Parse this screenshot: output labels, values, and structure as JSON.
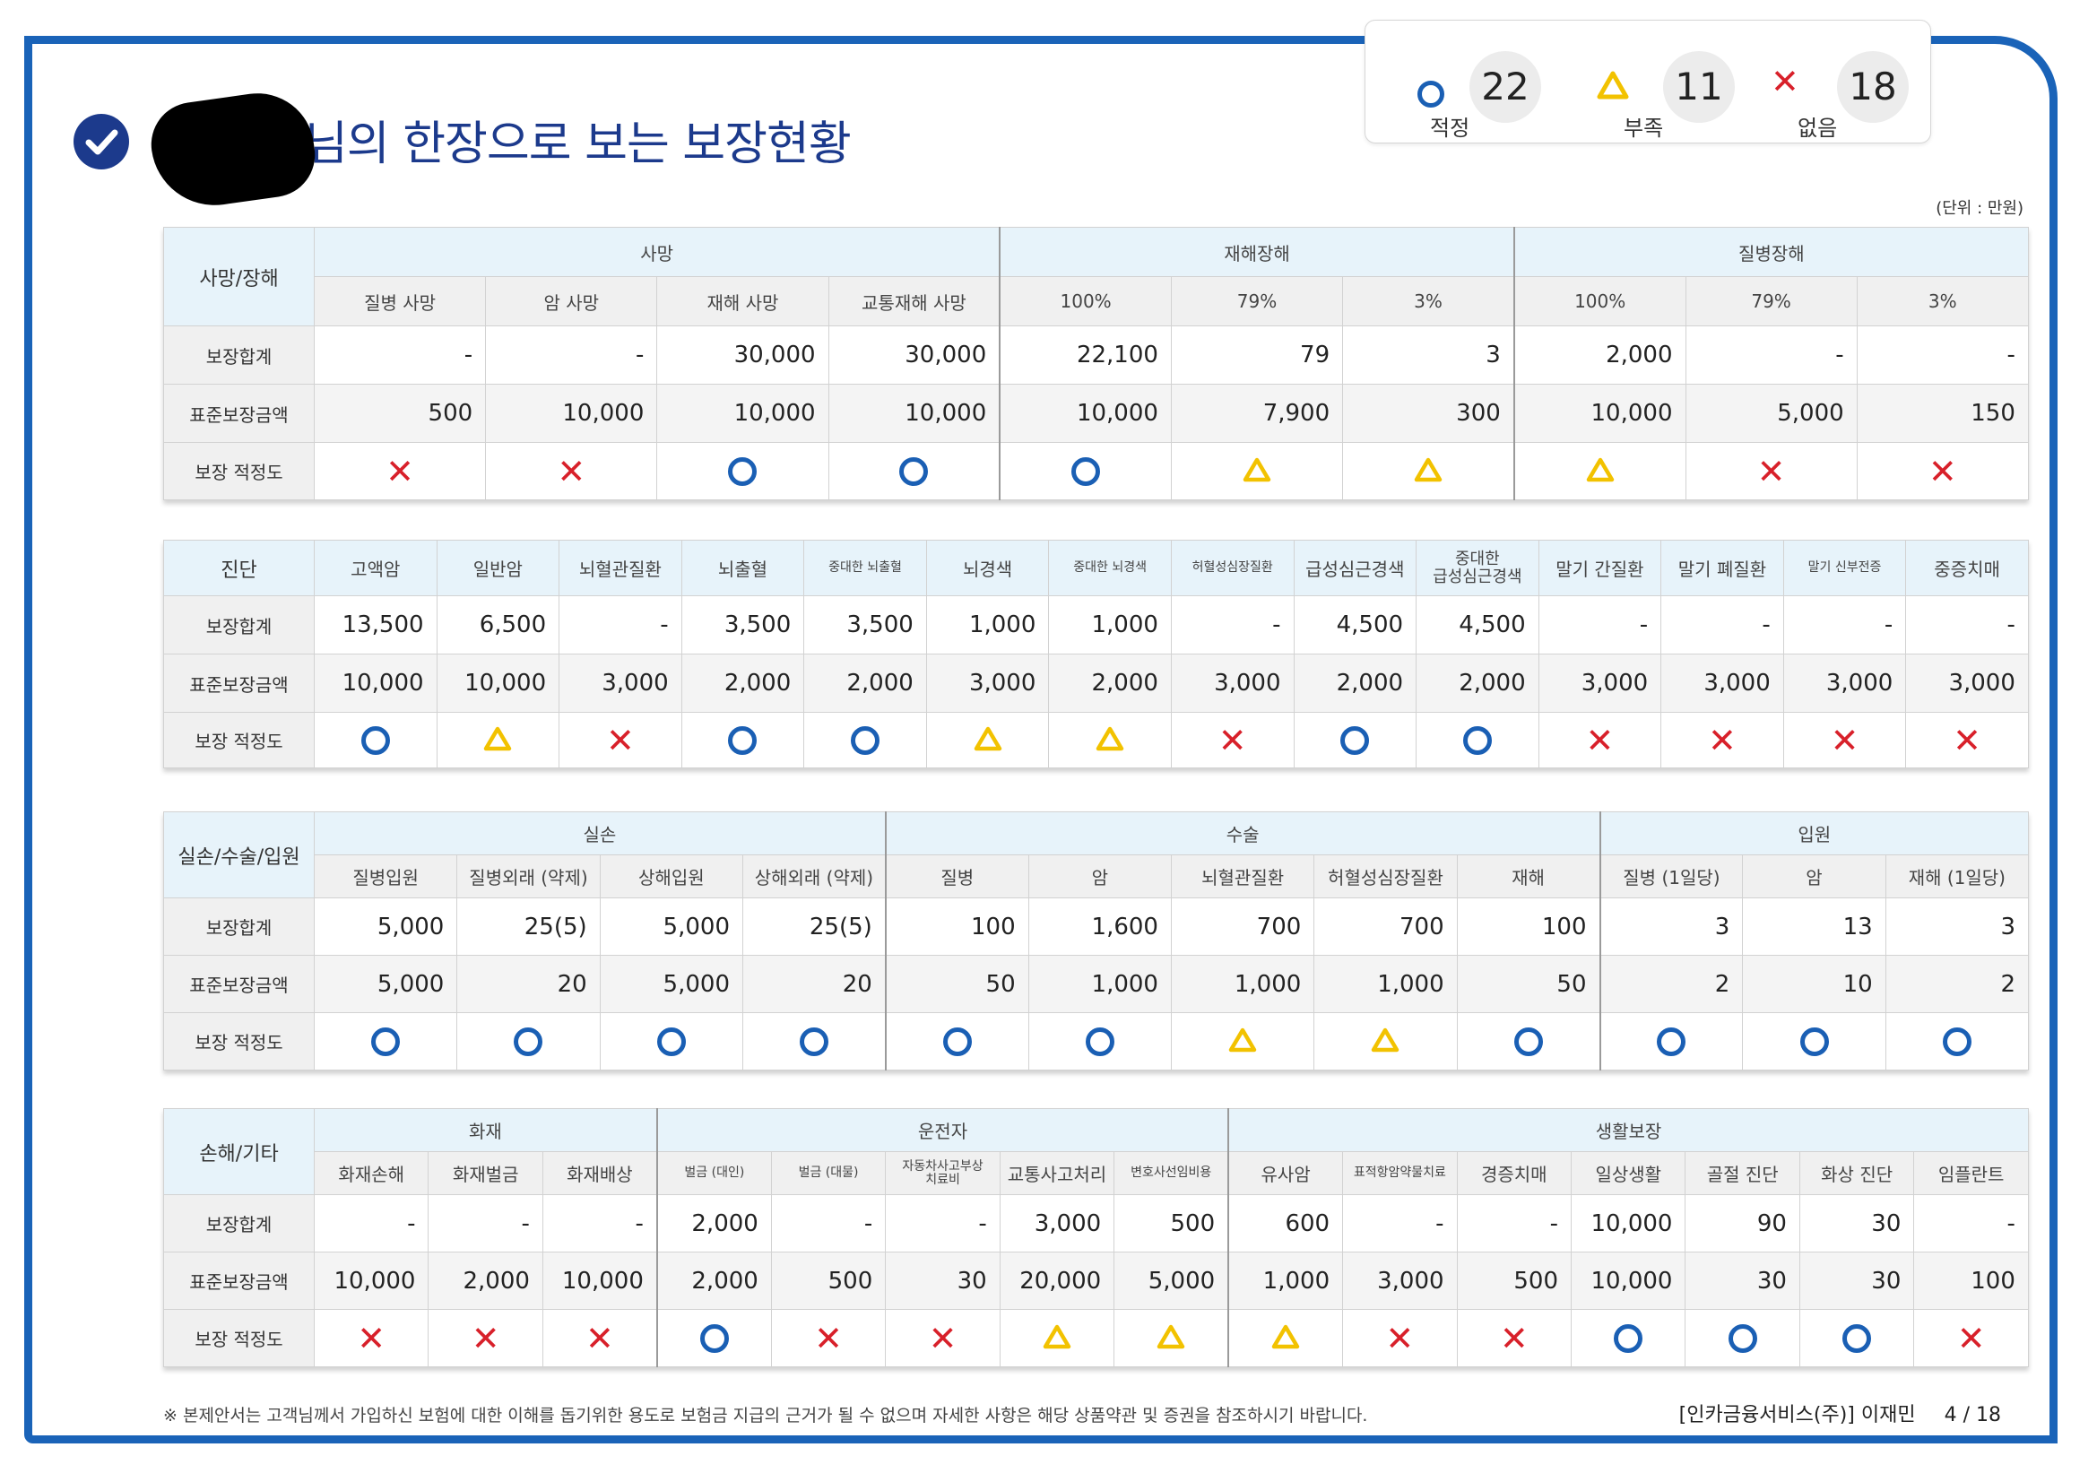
{
  "title": "님의 한장으로 보는 보장현황",
  "unit_label": "(단위 : 만원)",
  "legend": [
    {
      "symbol": "O",
      "count": "22",
      "label": "적정"
    },
    {
      "symbol": "triangle",
      "count": "11",
      "label": "부족"
    },
    {
      "symbol": "X",
      "count": "18",
      "label": "없음"
    }
  ],
  "colors": {
    "frame": "#1a63b8",
    "header": "#e7f3fa",
    "circle": "#1a5fb4",
    "triangle": "#f2c200",
    "cross": "#d8202a"
  },
  "row_labels": {
    "sum": "보장합계",
    "std": "표준보장금액",
    "adq": "보장 적정도"
  },
  "sections": [
    {
      "category": "사망/장해",
      "groups": [
        {
          "name": "사망",
          "span": 4
        },
        {
          "name": "재해장해",
          "span": 3
        },
        {
          "name": "질병장해",
          "span": 3
        }
      ],
      "items": [
        {
          "label": "질병 사망",
          "sum": "-",
          "std": "500",
          "mark": "X"
        },
        {
          "label": "암 사망",
          "sum": "-",
          "std": "10,000",
          "mark": "X"
        },
        {
          "label": "재해 사망",
          "sum": "30,000",
          "std": "10,000",
          "mark": "O"
        },
        {
          "label": "교통재해 사망",
          "sum": "30,000",
          "std": "10,000",
          "mark": "O"
        },
        {
          "label": "100%",
          "sum": "22,100",
          "std": "10,000",
          "mark": "O"
        },
        {
          "label": "79%",
          "sum": "79",
          "std": "7,900",
          "mark": "T"
        },
        {
          "label": "3%",
          "sum": "3",
          "std": "300",
          "mark": "T"
        },
        {
          "label": "100%",
          "sum": "2,000",
          "std": "10,000",
          "mark": "T"
        },
        {
          "label": "79%",
          "sum": "-",
          "std": "5,000",
          "mark": "X"
        },
        {
          "label": "3%",
          "sum": "-",
          "std": "150",
          "mark": "X"
        }
      ]
    },
    {
      "category": "진단",
      "groups": [],
      "items": [
        {
          "label": "고액암",
          "sum": "13,500",
          "std": "10,000",
          "mark": "O"
        },
        {
          "label": "일반암",
          "sum": "6,500",
          "std": "10,000",
          "mark": "T"
        },
        {
          "label": "뇌혈관질환",
          "sum": "-",
          "std": "3,000",
          "mark": "X"
        },
        {
          "label": "뇌출혈",
          "sum": "3,500",
          "std": "2,000",
          "mark": "O"
        },
        {
          "label": "중대한 뇌출혈",
          "sum": "3,500",
          "std": "2,000",
          "mark": "O"
        },
        {
          "label": "뇌경색",
          "sum": "1,000",
          "std": "3,000",
          "mark": "T"
        },
        {
          "label": "중대한 뇌경색",
          "sum": "1,000",
          "std": "2,000",
          "mark": "T"
        },
        {
          "label": "허혈성심장질환",
          "sum": "-",
          "std": "3,000",
          "mark": "X"
        },
        {
          "label": "급성심근경색",
          "sum": "4,500",
          "std": "2,000",
          "mark": "O"
        },
        {
          "label": "중대한\n급성심근경색",
          "sum": "4,500",
          "std": "2,000",
          "mark": "O"
        },
        {
          "label": "말기 간질환",
          "sum": "-",
          "std": "3,000",
          "mark": "X"
        },
        {
          "label": "말기 폐질환",
          "sum": "-",
          "std": "3,000",
          "mark": "X"
        },
        {
          "label": "말기 신부전증",
          "sum": "-",
          "std": "3,000",
          "mark": "X"
        },
        {
          "label": "중증치매",
          "sum": "-",
          "std": "3,000",
          "mark": "X"
        }
      ]
    },
    {
      "category": "실손/수술/입원",
      "groups": [
        {
          "name": "실손",
          "span": 4
        },
        {
          "name": "수술",
          "span": 5
        },
        {
          "name": "입원",
          "span": 3
        }
      ],
      "items": [
        {
          "label": "질병입원",
          "sum": "5,000",
          "std": "5,000",
          "mark": "O"
        },
        {
          "label": "질병외래 (약제)",
          "sum": "25(5)",
          "std": "20",
          "mark": "O"
        },
        {
          "label": "상해입원",
          "sum": "5,000",
          "std": "5,000",
          "mark": "O"
        },
        {
          "label": "상해외래 (약제)",
          "sum": "25(5)",
          "std": "20",
          "mark": "O"
        },
        {
          "label": "질병",
          "sum": "100",
          "std": "50",
          "mark": "O"
        },
        {
          "label": "암",
          "sum": "1,600",
          "std": "1,000",
          "mark": "O"
        },
        {
          "label": "뇌혈관질환",
          "sum": "700",
          "std": "1,000",
          "mark": "T"
        },
        {
          "label": "허혈성심장질환",
          "sum": "700",
          "std": "1,000",
          "mark": "T"
        },
        {
          "label": "재해",
          "sum": "100",
          "std": "50",
          "mark": "O"
        },
        {
          "label": "질병 (1일당)",
          "sum": "3",
          "std": "2",
          "mark": "O"
        },
        {
          "label": "암",
          "sum": "13",
          "std": "10",
          "mark": "O"
        },
        {
          "label": "재해 (1일당)",
          "sum": "3",
          "std": "2",
          "mark": "O"
        }
      ]
    },
    {
      "category": "손해/기타",
      "groups": [
        {
          "name": "화재",
          "span": 3
        },
        {
          "name": "운전자",
          "span": 5
        },
        {
          "name": "생활보장",
          "span": 7
        }
      ],
      "items": [
        {
          "label": "화재손해",
          "sum": "-",
          "std": "10,000",
          "mark": "X"
        },
        {
          "label": "화재벌금",
          "sum": "-",
          "std": "2,000",
          "mark": "X"
        },
        {
          "label": "화재배상",
          "sum": "-",
          "std": "10,000",
          "mark": "X"
        },
        {
          "label": "벌금 (대인)",
          "sum": "2,000",
          "std": "2,000",
          "mark": "O"
        },
        {
          "label": "벌금 (대물)",
          "sum": "-",
          "std": "500",
          "mark": "X"
        },
        {
          "label": "자동차사고부상\n치료비",
          "sum": "-",
          "std": "30",
          "mark": "X"
        },
        {
          "label": "교통사고처리",
          "sum": "3,000",
          "std": "20,000",
          "mark": "T"
        },
        {
          "label": "변호사선임비용",
          "sum": "500",
          "std": "5,000",
          "mark": "T"
        },
        {
          "label": "유사암",
          "sum": "600",
          "std": "1,000",
          "mark": "T"
        },
        {
          "label": "표적항암약물치료",
          "sum": "-",
          "std": "3,000",
          "mark": "X"
        },
        {
          "label": "경증치매",
          "sum": "-",
          "std": "500",
          "mark": "X"
        },
        {
          "label": "일상생활",
          "sum": "10,000",
          "std": "10,000",
          "mark": "O"
        },
        {
          "label": "골절 진단",
          "sum": "90",
          "std": "30",
          "mark": "O"
        },
        {
          "label": "화상 진단",
          "sum": "30",
          "std": "30",
          "mark": "O"
        },
        {
          "label": "임플란트",
          "sum": "-",
          "std": "100",
          "mark": "X"
        }
      ]
    }
  ],
  "footer": {
    "note": "※ 본제안서는 고객님께서 가입하신 보험에 대한 이해를 돕기위한 용도로 보험금 지급의 근거가 될 수 없으며 자세한 사항은 해당 상품약관 및 증권을 참조하시기 바랍니다.",
    "company": "[인카금융서비스(주)] 이재민",
    "page": "4 / 18"
  }
}
